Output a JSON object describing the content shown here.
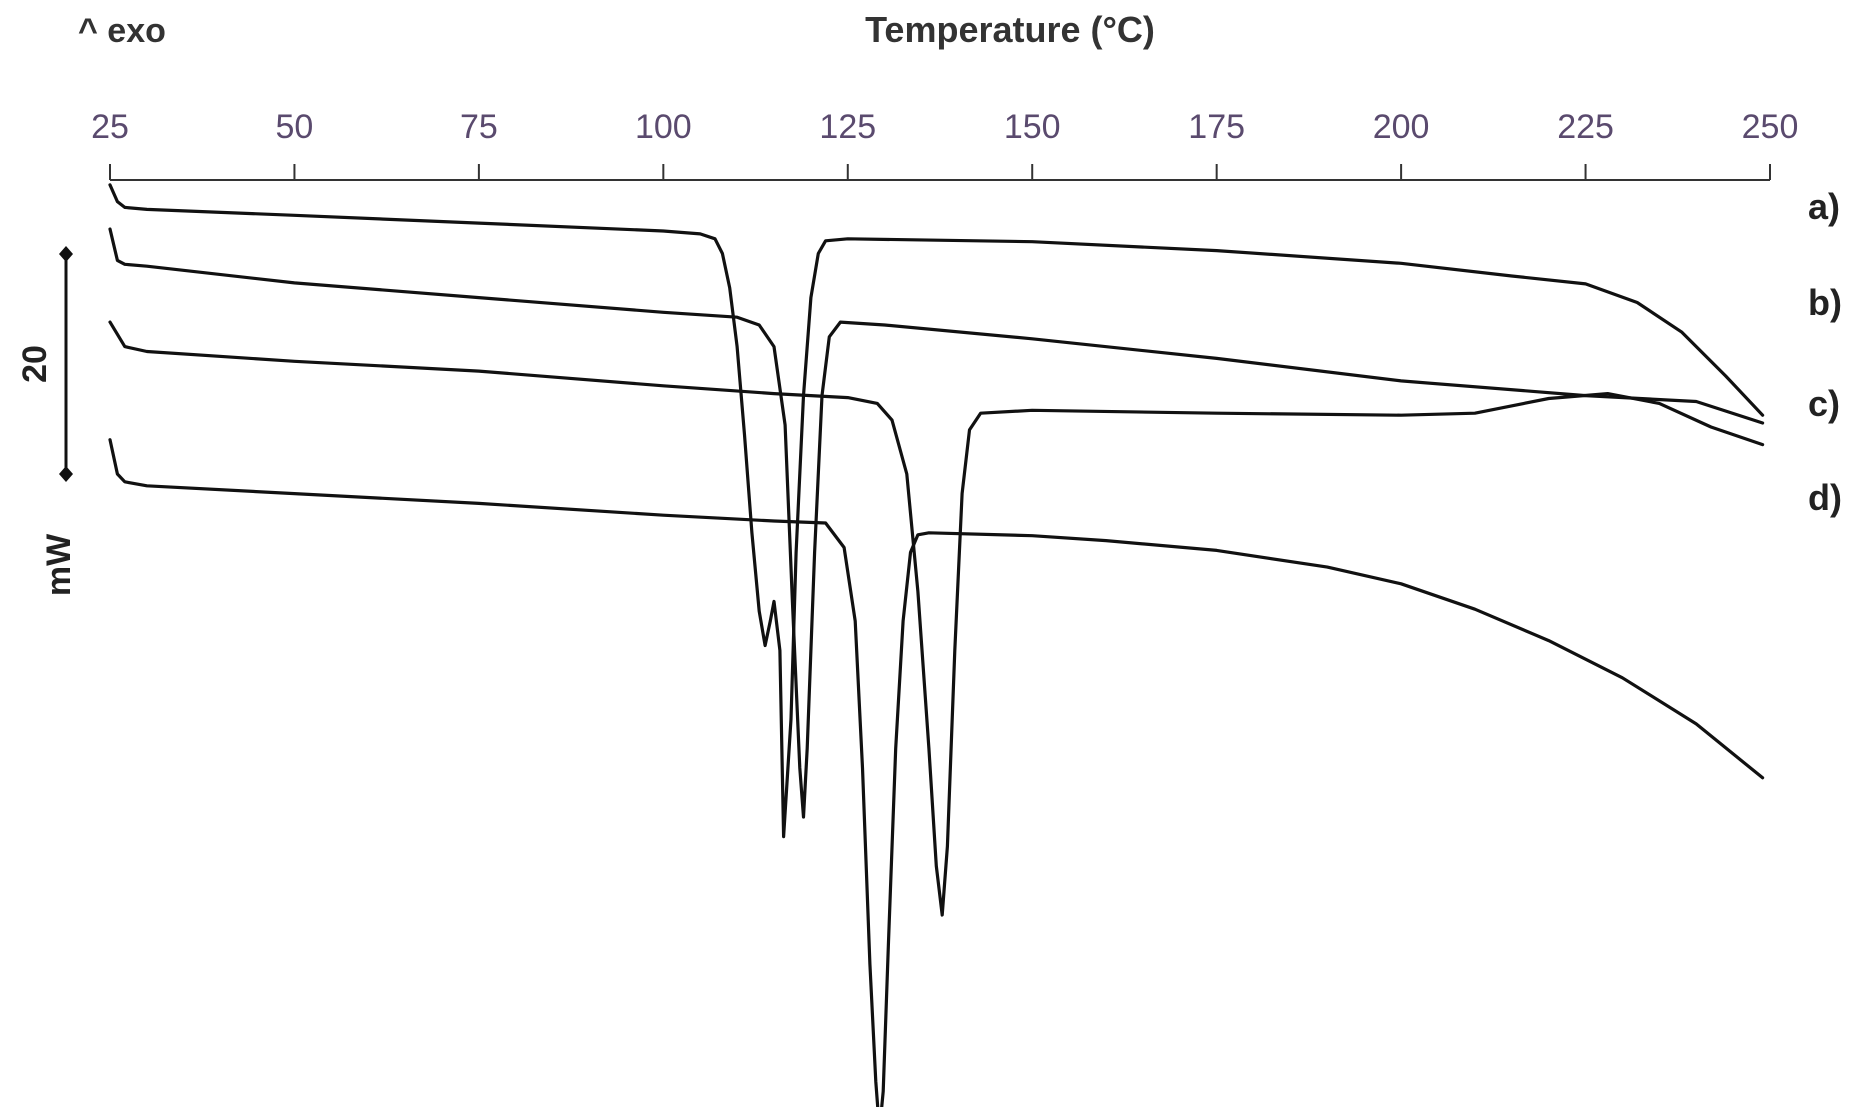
{
  "chart_data": {
    "type": "line",
    "title": "",
    "xlabel": "Temperature (°C)",
    "exo_label": "^ exo",
    "xlim": [
      25,
      250
    ],
    "xticks": [
      25,
      50,
      75,
      100,
      125,
      150,
      175,
      200,
      225,
      250
    ],
    "scale_bar": {
      "value": "20",
      "unit": "mW"
    },
    "grid": false,
    "legend": "right",
    "colors": {
      "line": "#111111",
      "ticks": "#5a4a6e"
    },
    "series": [
      {
        "name": "a)",
        "points": [
          [
            25,
            -0.5
          ],
          [
            26,
            -2.2
          ],
          [
            27,
            -2.8
          ],
          [
            30,
            -3.0
          ],
          [
            50,
            -3.6
          ],
          [
            75,
            -4.4
          ],
          [
            100,
            -5.2
          ],
          [
            105,
            -5.5
          ],
          [
            107,
            -6.0
          ],
          [
            108,
            -7.5
          ],
          [
            109,
            -11
          ],
          [
            110,
            -17
          ],
          [
            111,
            -26
          ],
          [
            112,
            -36
          ],
          [
            113,
            -44
          ],
          [
            113.8,
            -47.5
          ],
          [
            114.5,
            -45
          ],
          [
            115,
            -43
          ],
          [
            115.8,
            -48
          ],
          [
            116.3,
            -67
          ],
          [
            117.3,
            -55
          ],
          [
            118,
            -38
          ],
          [
            119,
            -22
          ],
          [
            120,
            -12
          ],
          [
            121,
            -7.5
          ],
          [
            122,
            -6.2
          ],
          [
            125,
            -6.0
          ],
          [
            150,
            -6.3
          ],
          [
            175,
            -7.2
          ],
          [
            200,
            -8.5
          ],
          [
            215,
            -9.8
          ],
          [
            225,
            -10.6
          ],
          [
            232,
            -12.5
          ],
          [
            238,
            -15.5
          ],
          [
            244,
            -20
          ],
          [
            249,
            -24
          ]
        ]
      },
      {
        "name": "b)",
        "points": [
          [
            25,
            -5
          ],
          [
            26,
            -8.2
          ],
          [
            27,
            -8.6
          ],
          [
            30,
            -8.8
          ],
          [
            50,
            -10.5
          ],
          [
            75,
            -12.0
          ],
          [
            100,
            -13.5
          ],
          [
            110,
            -14.0
          ],
          [
            113,
            -14.8
          ],
          [
            115,
            -17
          ],
          [
            116.5,
            -25
          ],
          [
            117.5,
            -43
          ],
          [
            118.5,
            -60
          ],
          [
            119,
            -65
          ],
          [
            119.5,
            -58
          ],
          [
            120.5,
            -38
          ],
          [
            121.5,
            -22
          ],
          [
            122.5,
            -16
          ],
          [
            124,
            -14.5
          ],
          [
            130,
            -14.8
          ],
          [
            150,
            -16.2
          ],
          [
            175,
            -18.2
          ],
          [
            200,
            -20.5
          ],
          [
            225,
            -22
          ],
          [
            240,
            -22.6
          ],
          [
            249,
            -24.8
          ]
        ]
      },
      {
        "name": "c)",
        "points": [
          [
            25,
            -14.5
          ],
          [
            27,
            -17
          ],
          [
            30,
            -17.5
          ],
          [
            50,
            -18.5
          ],
          [
            75,
            -19.5
          ],
          [
            100,
            -21
          ],
          [
            115,
            -21.8
          ],
          [
            125,
            -22.2
          ],
          [
            129,
            -22.8
          ],
          [
            131,
            -24.5
          ],
          [
            133,
            -30
          ],
          [
            134.5,
            -42
          ],
          [
            136,
            -58
          ],
          [
            137,
            -70
          ],
          [
            137.8,
            -75
          ],
          [
            138.5,
            -68
          ],
          [
            139.5,
            -48
          ],
          [
            140.5,
            -32
          ],
          [
            141.5,
            -25.5
          ],
          [
            143,
            -23.8
          ],
          [
            150,
            -23.5
          ],
          [
            175,
            -23.8
          ],
          [
            200,
            -24.0
          ],
          [
            210,
            -23.8
          ],
          [
            220,
            -22.3
          ],
          [
            228,
            -21.8
          ],
          [
            235,
            -22.8
          ],
          [
            242,
            -25.2
          ],
          [
            249,
            -27
          ]
        ]
      },
      {
        "name": "d)",
        "points": [
          [
            25,
            -26.5
          ],
          [
            26,
            -30
          ],
          [
            27,
            -30.8
          ],
          [
            30,
            -31.2
          ],
          [
            50,
            -32
          ],
          [
            75,
            -33
          ],
          [
            100,
            -34.2
          ],
          [
            115,
            -34.8
          ],
          [
            122,
            -35
          ],
          [
            124.5,
            -37.5
          ],
          [
            126,
            -45
          ],
          [
            127,
            -60
          ],
          [
            128,
            -80
          ],
          [
            128.8,
            -92
          ],
          [
            129.3,
            -97
          ],
          [
            129.8,
            -93
          ],
          [
            130.5,
            -78
          ],
          [
            131.5,
            -58
          ],
          [
            132.5,
            -45
          ],
          [
            133.5,
            -38
          ],
          [
            134.5,
            -36.2
          ],
          [
            136,
            -36
          ],
          [
            150,
            -36.3
          ],
          [
            160,
            -36.8
          ],
          [
            175,
            -37.8
          ],
          [
            190,
            -39.5
          ],
          [
            200,
            -41.2
          ],
          [
            210,
            -43.8
          ],
          [
            220,
            -47
          ],
          [
            230,
            -50.8
          ],
          [
            240,
            -55.5
          ],
          [
            249,
            -61
          ]
        ]
      }
    ]
  }
}
